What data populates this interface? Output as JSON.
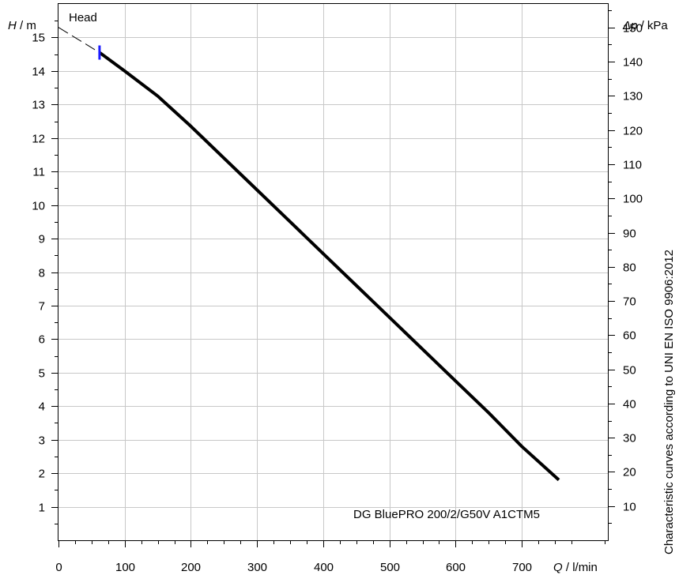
{
  "chart_data": {
    "type": "line",
    "title": "Head",
    "xlabel": {
      "symbol": "Q",
      "unit": "l/min"
    },
    "ylabel_left": {
      "symbol": "H",
      "unit": "m"
    },
    "ylabel_right": {
      "symbol": "Δp",
      "unit": "kPa"
    },
    "side_note": "Characteristic curves according to UNI EN ISO 9906:2012",
    "xlim": [
      0,
      830
    ],
    "ylim_left": [
      0,
      16
    ],
    "ylim_right_kpa": [
      0,
      156.9
    ],
    "x_ticks": [
      0,
      100,
      200,
      300,
      400,
      500,
      600,
      700
    ],
    "y_ticks_left": [
      1,
      2,
      3,
      4,
      5,
      6,
      7,
      8,
      9,
      10,
      11,
      12,
      13,
      14,
      15
    ],
    "y_ticks_right": [
      10,
      20,
      30,
      40,
      50,
      60,
      70,
      80,
      90,
      100,
      110,
      120,
      130,
      140,
      150
    ],
    "grid": true,
    "series": [
      {
        "name": "DG BluePRO 200/2/G50V A1CTM5",
        "color": "#000000",
        "x": [
          62,
          100,
          150,
          200,
          250,
          300,
          350,
          400,
          450,
          500,
          550,
          600,
          650,
          700,
          756
        ],
        "y": [
          14.55,
          14.0,
          13.25,
          12.35,
          11.4,
          10.45,
          9.5,
          8.55,
          7.6,
          6.65,
          5.7,
          4.75,
          3.8,
          2.8,
          1.8
        ]
      }
    ],
    "extrapolation": {
      "style": "dashed",
      "x": [
        0,
        62
      ],
      "y": [
        15.3,
        14.55
      ]
    },
    "marker": {
      "shape": "vertical-bar",
      "color": "#1a1aff",
      "x": 62,
      "y": 14.55
    }
  }
}
